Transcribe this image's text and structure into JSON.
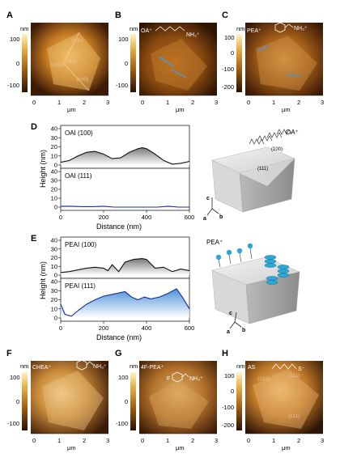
{
  "panels": {
    "A": {
      "letter": "A"
    },
    "B": {
      "letter": "B",
      "label": "OA⁺",
      "ion": "NH₃⁺"
    },
    "C": {
      "letter": "C",
      "label": "PEA⁺",
      "ion": "NH₃⁺"
    },
    "D": {
      "letter": "D"
    },
    "E": {
      "letter": "E"
    },
    "F": {
      "letter": "F",
      "label": "CHEA⁺",
      "ion": "NH₃⁺"
    },
    "G": {
      "letter": "G",
      "label": "4F-PEA⁺",
      "ion": "NH₃⁺",
      "atom": "F"
    },
    "H": {
      "letter": "H",
      "label": "AS",
      "ion": "S⁻"
    }
  },
  "afm": {
    "unit": "nm",
    "xlabel": "μm",
    "xticks": [
      "0",
      "1",
      "2",
      "3"
    ],
    "yticks_100": [
      "100",
      "0",
      "-100"
    ],
    "yticks_200": [
      "100",
      "0",
      "-100",
      "-200"
    ],
    "facets": {
      "f100": "(100)",
      "f111": "(111)"
    }
  },
  "diagrams": {
    "oa_ion": "OA⁺",
    "pea_ion": "PEA⁺",
    "facet100": "(100)",
    "facet111": "(111)",
    "axis_a": "a",
    "axis_b": "b",
    "axis_c": "c"
  },
  "chart_data": [
    {
      "type": "area",
      "panel": "D",
      "xlabel": "Distance (nm)",
      "ylabel": "Height (nm)",
      "xlim": [
        0,
        600
      ],
      "xticks": [
        0,
        200,
        400,
        600
      ],
      "series": [
        {
          "name": "OAI (100)",
          "ylim": [
            0,
            40
          ],
          "yticks": [
            0,
            10,
            20,
            30,
            40
          ],
          "x": [
            0,
            40,
            80,
            120,
            160,
            200,
            240,
            280,
            320,
            360,
            380,
            400,
            440,
            480,
            520,
            560,
            600
          ],
          "y": [
            3,
            5,
            10,
            14,
            15,
            12,
            7,
            8,
            14,
            18,
            19,
            18,
            12,
            5,
            1,
            2,
            4
          ]
        },
        {
          "name": "OAI (111)",
          "ylim": [
            0,
            40
          ],
          "yticks": [
            0,
            10,
            20,
            30,
            40
          ],
          "x": [
            0,
            50,
            100,
            150,
            200,
            250,
            300,
            350,
            400,
            450,
            500,
            550,
            600
          ],
          "y": [
            1,
            1,
            0.5,
            0.5,
            1,
            0,
            0,
            0,
            0,
            0,
            1,
            0,
            0
          ]
        }
      ]
    },
    {
      "type": "area",
      "panel": "E",
      "xlabel": "Distance (nm)",
      "ylabel": "Height (nm)",
      "xlim": [
        0,
        600
      ],
      "xticks": [
        0,
        200,
        400,
        600
      ],
      "series": [
        {
          "name": "PEAI (100)",
          "ylim": [
            0,
            40
          ],
          "yticks": [
            0,
            10,
            20,
            30,
            40
          ],
          "x": [
            0,
            40,
            80,
            120,
            160,
            200,
            220,
            240,
            270,
            300,
            340,
            380,
            400,
            440,
            480,
            520,
            560,
            600
          ],
          "y": [
            3,
            4,
            6,
            8,
            9,
            8,
            5,
            12,
            4,
            15,
            18,
            19,
            18,
            8,
            9,
            4,
            7,
            5
          ]
        },
        {
          "name": "PEAI (111)",
          "ylim": [
            0,
            40
          ],
          "yticks": [
            0,
            10,
            20,
            30,
            40
          ],
          "x": [
            0,
            20,
            50,
            80,
            120,
            160,
            200,
            240,
            280,
            300,
            330,
            360,
            390,
            420,
            460,
            500,
            540,
            570,
            600
          ],
          "y": [
            15,
            4,
            2,
            8,
            15,
            20,
            24,
            26,
            28,
            29,
            23,
            20,
            23,
            21,
            23,
            27,
            32,
            22,
            10
          ]
        }
      ]
    }
  ]
}
